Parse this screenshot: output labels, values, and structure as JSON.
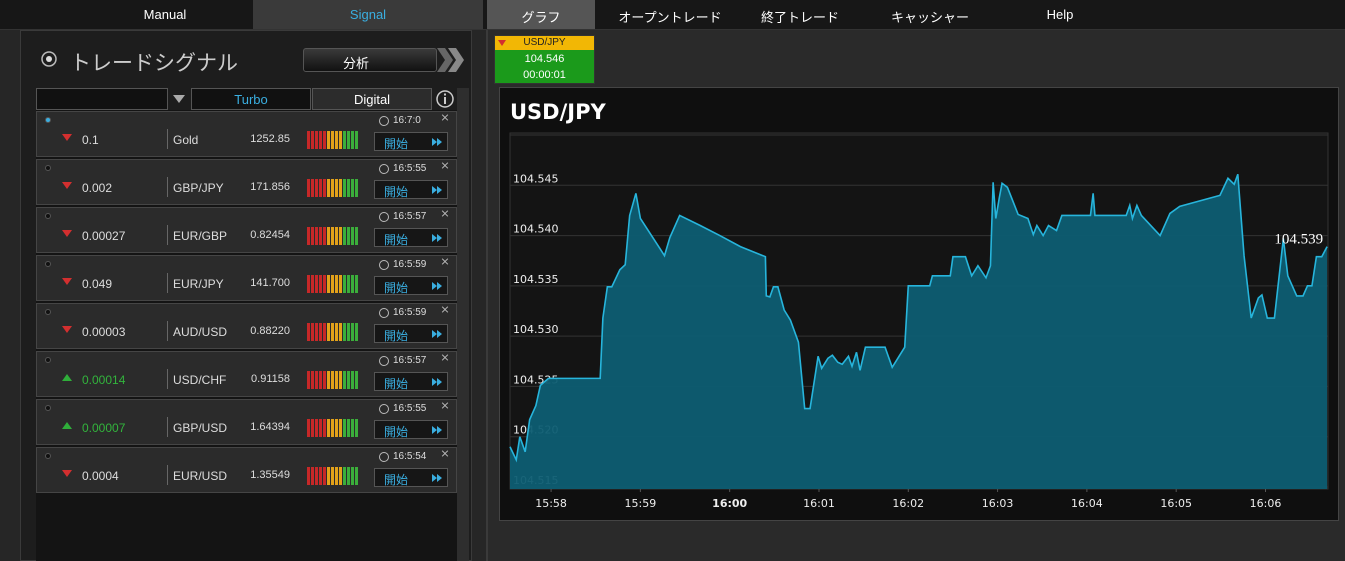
{
  "nav": {
    "tabs": [
      "Manual",
      "Signal",
      "グラフ",
      "オープントレード",
      "終了トレード",
      "キャッシャー",
      "Help"
    ]
  },
  "signals": {
    "title": "トレードシグナル",
    "analyze": "分析",
    "filters": [
      "Turbo",
      "Digital"
    ],
    "rows": [
      {
        "direction": "down",
        "value": "0.1",
        "asset": "Gold",
        "price": "1252.85",
        "time": "16:7:0",
        "action": "開始"
      },
      {
        "direction": "down",
        "value": "0.002",
        "asset": "GBP/JPY",
        "price": "171.856",
        "time": "16:5:55",
        "action": "開始"
      },
      {
        "direction": "down",
        "value": "0.00027",
        "asset": "EUR/GBP",
        "price": "0.82454",
        "time": "16:5:57",
        "action": "開始"
      },
      {
        "direction": "down",
        "value": "0.049",
        "asset": "EUR/JPY",
        "price": "141.700",
        "time": "16:5:59",
        "action": "開始"
      },
      {
        "direction": "down",
        "value": "0.00003",
        "asset": "AUD/USD",
        "price": "0.88220",
        "time": "16:5:59",
        "action": "開始"
      },
      {
        "direction": "up",
        "value": "0.00014",
        "asset": "USD/CHF",
        "price": "0.91158",
        "time": "16:5:57",
        "action": "開始"
      },
      {
        "direction": "up",
        "value": "0.00007",
        "asset": "GBP/USD",
        "price": "1.64394",
        "time": "16:5:55",
        "action": "開始"
      },
      {
        "direction": "down",
        "value": "0.0004",
        "asset": "EUR/USD",
        "price": "1.35549",
        "time": "16:5:54",
        "action": "開始"
      }
    ]
  },
  "ticker": {
    "pair": "USD/JPY",
    "price": "104.546",
    "timer": "00:00:01",
    "direction": "down"
  },
  "chart_data": {
    "type": "area",
    "title": "USD/JPY",
    "color": "#27b5dc",
    "fill": "#0d5d72",
    "grid": true,
    "last_label": "104.539",
    "xlim": [
      957.54,
      966.7
    ],
    "ylim": [
      104.515,
      104.55
    ],
    "xticks": [
      {
        "value": 958,
        "label": "15:58"
      },
      {
        "value": 959,
        "label": "15:59"
      },
      {
        "value": 960,
        "label": "16:00"
      },
      {
        "value": 961,
        "label": "16:01"
      },
      {
        "value": 962,
        "label": "16:02"
      },
      {
        "value": 963,
        "label": "16:03"
      },
      {
        "value": 964,
        "label": "16:04"
      },
      {
        "value": 965,
        "label": "16:05"
      },
      {
        "value": 966,
        "label": "16:06"
      }
    ],
    "yticks": [
      104.515,
      {
        "value": 104.52,
        "label": "104.520"
      },
      104.525,
      {
        "value": 104.53,
        "label": "104.530"
      },
      104.535,
      {
        "value": 104.54,
        "label": "104.540"
      },
      104.545
    ],
    "x": [
      957.54,
      957.61,
      957.65,
      957.71,
      957.76,
      957.83,
      957.88,
      957.97,
      958.55,
      958.58,
      958.63,
      958.68,
      958.77,
      958.83,
      958.88,
      958.95,
      959.0,
      959.22,
      959.27,
      959.33,
      959.44,
      959.67,
      959.89,
      960.12,
      960.4,
      960.41,
      960.45,
      960.49,
      960.54,
      960.61,
      960.68,
      960.77,
      960.84,
      960.9,
      960.99,
      961.03,
      961.1,
      961.15,
      961.21,
      961.26,
      961.33,
      961.37,
      961.42,
      961.46,
      961.52,
      961.74,
      961.82,
      961.96,
      962.0,
      962.24,
      962.27,
      962.47,
      962.5,
      962.64,
      962.71,
      962.78,
      962.87,
      962.92,
      962.95,
      962.98,
      963.02,
      963.05,
      963.11,
      963.23,
      963.34,
      963.4,
      963.44,
      963.51,
      963.57,
      963.66,
      963.72,
      964.04,
      964.07,
      964.09,
      964.44,
      964.48,
      964.51,
      964.56,
      964.61,
      964.82,
      964.93,
      965.04,
      965.49,
      965.58,
      965.65,
      965.69,
      965.76,
      965.84,
      965.92,
      965.96,
      966.02,
      966.1,
      966.2,
      966.25,
      966.35,
      966.42,
      966.47,
      966.52,
      966.57,
      966.63,
      966.69
    ],
    "values": [
      104.519,
      104.5177,
      104.52,
      104.5185,
      104.5217,
      104.5231,
      104.5251,
      104.5258,
      104.5258,
      104.5318,
      104.5349,
      104.5349,
      104.5366,
      104.5371,
      104.542,
      104.5442,
      104.5417,
      104.5387,
      104.538,
      104.5398,
      104.542,
      104.541,
      104.54,
      104.5389,
      104.5379,
      104.534,
      104.5339,
      104.5349,
      104.5349,
      104.5326,
      104.5316,
      104.5294,
      104.5228,
      104.5228,
      104.528,
      104.5268,
      104.5278,
      104.5281,
      104.5274,
      104.5272,
      104.528,
      104.527,
      104.5284,
      104.5266,
      104.5289,
      104.5289,
      104.5269,
      104.5289,
      104.535,
      104.535,
      104.536,
      104.536,
      104.5379,
      104.5379,
      104.536,
      104.537,
      104.5358,
      104.537,
      104.5453,
      104.5417,
      104.5438,
      104.5452,
      104.5448,
      104.5421,
      104.5417,
      104.5401,
      104.541,
      104.54,
      104.541,
      104.5405,
      104.542,
      104.542,
      104.5442,
      104.542,
      104.542,
      104.543,
      104.5417,
      104.543,
      104.542,
      104.54,
      104.5422,
      104.5429,
      104.544,
      104.5457,
      104.5451,
      104.5461,
      104.538,
      104.5318,
      104.5338,
      104.5341,
      104.5318,
      104.5318,
      104.5397,
      104.536,
      104.534,
      104.534,
      104.535,
      104.535,
      104.5379,
      104.5379,
      104.5389
    ]
  }
}
